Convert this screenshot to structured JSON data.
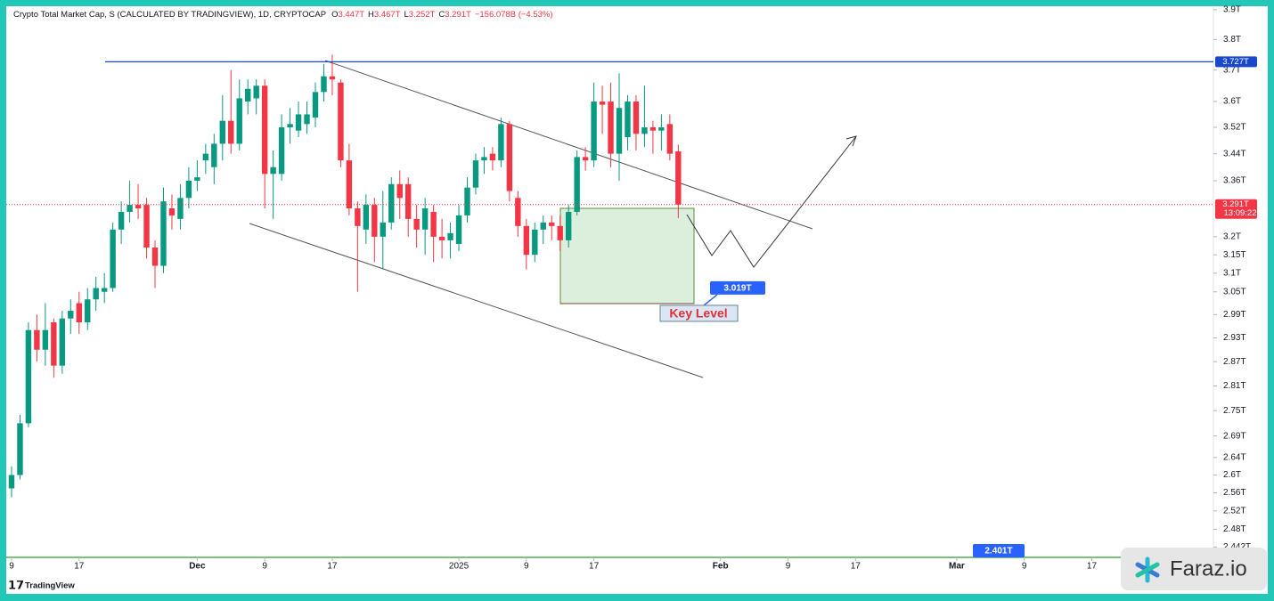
{
  "chart_data": {
    "type": "candlestick",
    "title": "Crypto Total Market Cap, S (CALCULATED BY TRADINGVIEW), 1D, CRYPTOCAP",
    "ohlc_legend": [
      {
        "label": "O",
        "value": "3.447T"
      },
      {
        "label": "H",
        "value": "3.467T"
      },
      {
        "label": "L",
        "value": "3.252T"
      },
      {
        "label": "C",
        "value": "3.291T"
      }
    ],
    "change": "−156.078B (−4.53%)",
    "x": [
      0,
      1,
      2,
      3,
      4,
      5,
      6,
      7,
      8,
      9,
      10,
      11,
      12,
      13,
      14,
      15,
      16,
      17,
      18,
      19,
      20,
      21,
      22,
      23,
      24,
      25,
      26,
      27,
      28,
      29,
      30,
      31,
      32,
      33,
      34,
      35,
      36,
      37,
      38,
      39,
      40,
      41,
      42,
      43,
      44,
      45,
      46,
      47,
      48,
      49,
      50,
      51,
      52,
      53,
      54,
      55,
      56,
      57,
      58,
      59,
      60,
      61,
      62,
      63,
      64,
      65,
      66,
      67,
      68,
      69,
      70,
      71,
      72,
      73,
      74,
      75,
      76,
      77,
      78,
      79
    ],
    "open": [
      2.57,
      2.6,
      2.72,
      2.95,
      2.9,
      2.97,
      2.86,
      2.98,
      3.02,
      2.97,
      3.03,
      3.05,
      3.06,
      3.22,
      3.27,
      3.29,
      3.29,
      3.17,
      3.12,
      3.28,
      3.25,
      3.31,
      3.36,
      3.42,
      3.4,
      3.47,
      3.54,
      3.47,
      3.6,
      3.61,
      3.65,
      3.38,
      3.38,
      3.52,
      3.51,
      3.53,
      3.55,
      3.63,
      3.68,
      3.66,
      3.42,
      3.28,
      3.22,
      3.29,
      3.2,
      3.24,
      3.35,
      3.35,
      3.25,
      3.22,
      3.27,
      3.2,
      3.19,
      3.18,
      3.26,
      3.34,
      3.42,
      3.44,
      3.42,
      3.53,
      3.31,
      3.23,
      3.15,
      3.22,
      3.24,
      3.23,
      3.19,
      3.27,
      3.43,
      3.42,
      3.6,
      3.6,
      3.44,
      3.49,
      3.6,
      3.5,
      3.52,
      3.51,
      3.53,
      3.447
    ],
    "high": [
      2.62,
      2.74,
      2.97,
      2.99,
      3.02,
      2.98,
      3.0,
      3.03,
      3.05,
      3.06,
      3.09,
      3.1,
      3.24,
      3.3,
      3.36,
      3.35,
      3.31,
      3.19,
      3.34,
      3.32,
      3.35,
      3.4,
      3.42,
      3.47,
      3.5,
      3.62,
      3.7,
      3.67,
      3.67,
      3.67,
      3.67,
      3.45,
      3.56,
      3.58,
      3.6,
      3.6,
      3.66,
      3.72,
      3.75,
      3.67,
      3.47,
      3.3,
      3.32,
      3.31,
      3.33,
      3.37,
      3.39,
      3.37,
      3.29,
      3.31,
      3.29,
      3.25,
      3.24,
      3.29,
      3.37,
      3.44,
      3.46,
      3.46,
      3.55,
      3.54,
      3.33,
      3.25,
      3.24,
      3.26,
      3.26,
      3.26,
      3.29,
      3.45,
      3.46,
      3.66,
      3.65,
      3.66,
      3.69,
      3.62,
      3.62,
      3.65,
      3.54,
      3.56,
      3.56,
      3.467
    ],
    "low": [
      2.55,
      2.59,
      2.71,
      2.87,
      2.86,
      2.83,
      2.84,
      2.94,
      2.94,
      2.95,
      3.0,
      3.02,
      3.05,
      3.18,
      3.24,
      3.25,
      3.14,
      3.06,
      3.1,
      3.22,
      3.22,
      3.28,
      3.33,
      3.38,
      3.35,
      3.42,
      3.44,
      3.45,
      3.56,
      3.56,
      3.28,
      3.25,
      3.36,
      3.47,
      3.49,
      3.5,
      3.52,
      3.6,
      3.62,
      3.4,
      3.26,
      3.05,
      3.18,
      3.13,
      3.11,
      3.22,
      3.25,
      3.2,
      3.17,
      3.15,
      3.13,
      3.14,
      3.14,
      3.16,
      3.24,
      3.32,
      3.38,
      3.39,
      3.4,
      3.3,
      3.2,
      3.11,
      3.13,
      3.18,
      3.19,
      3.16,
      3.17,
      3.26,
      3.39,
      3.4,
      3.5,
      3.4,
      3.36,
      3.45,
      3.45,
      3.46,
      3.44,
      3.45,
      3.42,
      3.252
    ],
    "close": [
      2.6,
      2.72,
      2.95,
      2.9,
      2.95,
      2.86,
      2.98,
      3.0,
      2.97,
      3.03,
      3.06,
      3.06,
      3.22,
      3.27,
      3.29,
      3.28,
      3.17,
      3.12,
      3.3,
      3.26,
      3.31,
      3.36,
      3.37,
      3.44,
      3.47,
      3.54,
      3.47,
      3.61,
      3.64,
      3.65,
      3.38,
      3.4,
      3.52,
      3.53,
      3.56,
      3.56,
      3.63,
      3.68,
      3.67,
      3.42,
      3.28,
      3.23,
      3.29,
      3.2,
      3.24,
      3.35,
      3.31,
      3.25,
      3.22,
      3.28,
      3.2,
      3.19,
      3.21,
      3.26,
      3.34,
      3.42,
      3.43,
      3.42,
      3.53,
      3.33,
      3.23,
      3.15,
      3.22,
      3.24,
      3.23,
      3.19,
      3.27,
      3.43,
      3.42,
      3.6,
      3.59,
      3.44,
      3.58,
      3.6,
      3.5,
      3.52,
      3.51,
      3.52,
      3.44,
      3.291
    ],
    "up_color": "#089981",
    "down_color": "#f23645",
    "log_scale": true,
    "ylim": [
      2.42,
      3.933
    ],
    "yticks": [
      {
        "value": 3.9,
        "label": "3.9T"
      },
      {
        "value": 3.8,
        "label": "3.8T"
      },
      {
        "value": 3.7,
        "label": "3.7T"
      },
      {
        "value": 3.6,
        "label": "3.6T"
      },
      {
        "value": 3.52,
        "label": "3.52T"
      },
      {
        "value": 3.44,
        "label": "3.44T"
      },
      {
        "value": 3.36,
        "label": "3.36T"
      },
      {
        "value": 3.2,
        "label": "3.2T"
      },
      {
        "value": 3.15,
        "label": "3.15T"
      },
      {
        "value": 3.1,
        "label": "3.1T"
      },
      {
        "value": 3.05,
        "label": "3.05T"
      },
      {
        "value": 2.99,
        "label": "2.99T"
      },
      {
        "value": 2.93,
        "label": "2.93T"
      },
      {
        "value": 2.87,
        "label": "2.87T"
      },
      {
        "value": 2.81,
        "label": "2.81T"
      },
      {
        "value": 2.75,
        "label": "2.75T"
      },
      {
        "value": 2.69,
        "label": "2.69T"
      },
      {
        "value": 2.64,
        "label": "2.64T"
      },
      {
        "value": 2.6,
        "label": "2.6T"
      },
      {
        "value": 2.56,
        "label": "2.56T"
      },
      {
        "value": 2.52,
        "label": "2.52T"
      },
      {
        "value": 2.48,
        "label": "2.48T"
      },
      {
        "value": 2.442,
        "label": "2.442T"
      }
    ],
    "xlim": [
      -1.37,
      142.2
    ],
    "xticks": [
      {
        "value": 0,
        "label": "9"
      },
      {
        "value": 8,
        "label": "17"
      },
      {
        "value": 22,
        "label": "Dec"
      },
      {
        "value": 30,
        "label": "9"
      },
      {
        "value": 38,
        "label": "17"
      },
      {
        "value": 53,
        "label": "2025"
      },
      {
        "value": 61,
        "label": "9"
      },
      {
        "value": 69,
        "label": "17"
      },
      {
        "value": 84,
        "label": "Feb"
      },
      {
        "value": 92,
        "label": "9"
      },
      {
        "value": 100,
        "label": "17"
      },
      {
        "value": 112,
        "label": "Mar"
      },
      {
        "value": 120,
        "label": "9"
      },
      {
        "value": 128,
        "label": "17"
      }
    ],
    "price_lines": [
      {
        "value": 3.727,
        "label": "3.727T",
        "color": "#1848cc"
      },
      {
        "value": 3.291,
        "label": "3.291T",
        "color": "#f23645",
        "countdown": "13:09:22"
      }
    ],
    "key_level": {
      "value": 3.019,
      "label": "3.019T",
      "text": "Key Level"
    },
    "annotation": "2.401T",
    "watermark": "Faraz.io",
    "brand": "TradingView"
  }
}
